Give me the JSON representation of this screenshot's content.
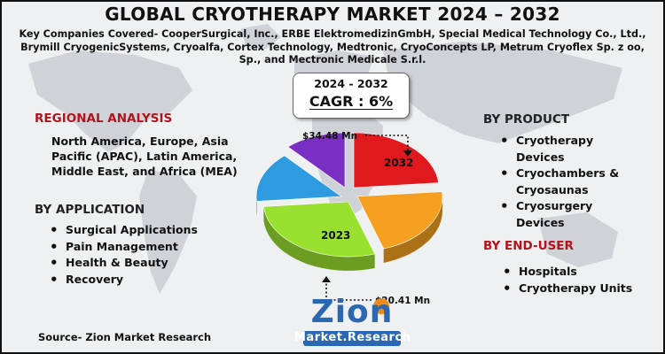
{
  "header": {
    "title": "GLOBAL CRYOTHERAPY MARKET 2024 – 2032",
    "companies": "Key Companies Covered- CooperSurgical, Inc., ERBE ElektromedizinGmbH, Special Medical Technology Co., Ltd., Brymill CryogenicSystems, Cryoalfa, Cortex Technology, Medtronic, CryoConcepts LP, Metrum Cryoflex Sp. z oo, Sp., and Mectronic Medicale S.r.l."
  },
  "cagr": {
    "years": "2024 - 2032",
    "value": "CAGR : 6%"
  },
  "regional": {
    "heading": "REGIONAL ANALYSIS",
    "text": "North America, Europe, Asia Pacific (APAC), Latin America, Middle East, and Africa (MEA)"
  },
  "application": {
    "heading": "BY APPLICATION",
    "items": [
      "Surgical Applications",
      "Pain Management",
      "Health & Beauty",
      "Recovery"
    ]
  },
  "product": {
    "heading": "BY PRODUCT",
    "items": [
      "Cryotherapy Devices",
      "Cryochambers & Cryosaunas",
      "Cryosurgery Devices"
    ]
  },
  "end_user": {
    "heading": "BY END-USER",
    "items": [
      "Hospitals",
      "Cryotherapy Units"
    ]
  },
  "source": "Source- Zion Market Research",
  "logo": {
    "name": "Zion",
    "sub": "Market.Research"
  },
  "colors": {
    "title_red": "#b5121b",
    "red": "#e0191f",
    "orange": "#f5a020",
    "green": "#9ae030",
    "blue": "#2e9be0",
    "purple": "#7a2fc4",
    "logo_blue": "#2c67b2",
    "logo_orange": "#f08a1c"
  },
  "chart_data": {
    "type": "pie",
    "values": [
      {
        "label": "2023",
        "value": 20.41,
        "annotation": "$20.41 Mn"
      },
      {
        "label": "2032",
        "value": 34.48,
        "annotation": "$34.48 Mn"
      }
    ],
    "slice_colors": [
      "#e0191f",
      "#f5a020",
      "#9ae030",
      "#2e9be0",
      "#7a2fc4"
    ]
  }
}
